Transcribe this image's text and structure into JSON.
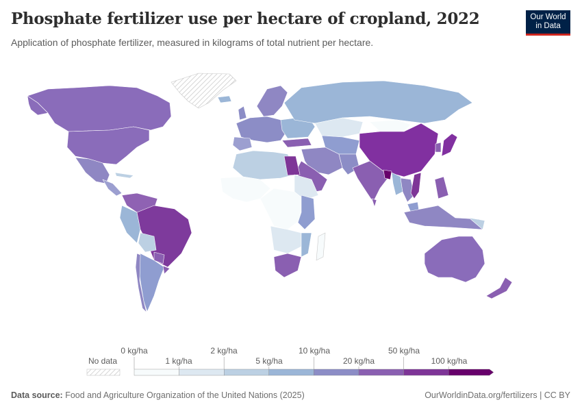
{
  "header": {
    "title": "Phosphate fertilizer use per hectare of cropland, 2022",
    "subtitle": "Application of phosphate fertilizer, measured in kilograms of total nutrient per hectare."
  },
  "logo": {
    "line1": "Our World",
    "line2": "in Data"
  },
  "legend": {
    "no_data_label": "No data",
    "upper_labels": [
      "0 kg/ha",
      "2 kg/ha",
      "10 kg/ha",
      "50 kg/ha"
    ],
    "lower_labels": [
      "1 kg/ha",
      "5 kg/ha",
      "20 kg/ha",
      "100 kg/ha"
    ],
    "colors": [
      "#f7fbfc",
      "#dde8f1",
      "#bcd0e3",
      "#9bb6d7",
      "#8c8dc6",
      "#8a5fb1",
      "#7e3597",
      "#67006b"
    ]
  },
  "footer": {
    "source_label": "Data source:",
    "source_text": "Food and Agriculture Organization of the United Nations (2025)",
    "credit": "OurWorldinData.org/fertilizers | CC BY"
  }
}
